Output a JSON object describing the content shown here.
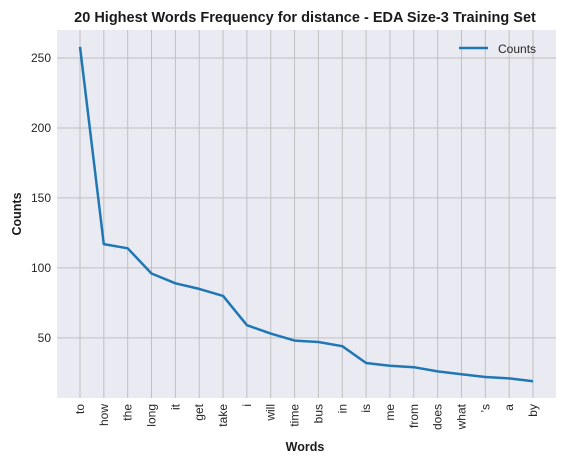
{
  "chart_data": {
    "type": "line",
    "title": "20 Highest Words Frequency for distance - EDA Size-3 Training Set",
    "xlabel": "Words",
    "ylabel": "Counts",
    "categories": [
      "to",
      "how",
      "the",
      "long",
      "it",
      "get",
      "take",
      "i",
      "will",
      "time",
      "bus",
      "in",
      "is",
      "me",
      "from",
      "does",
      "what",
      "'s",
      "a",
      "by"
    ],
    "series": [
      {
        "name": "Counts",
        "color": "#1f77b4",
        "values": [
          258,
          117,
          114,
          96,
          89,
          85,
          80,
          59,
          53,
          48,
          47,
          44,
          32,
          30,
          29,
          26,
          24,
          22,
          21,
          19
        ]
      }
    ],
    "y_ticks": [
      50,
      100,
      150,
      200,
      250
    ],
    "ylim": [
      7,
      270
    ],
    "grid": true,
    "legend_position": "top-right",
    "background_color": "#eaeaf2",
    "grid_color": "#c0c0c0"
  }
}
